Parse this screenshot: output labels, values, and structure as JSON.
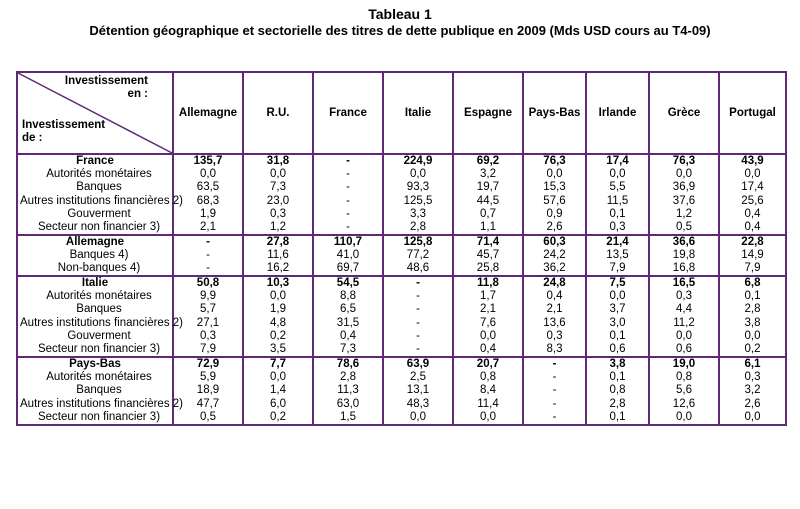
{
  "title": "Tableau 1",
  "subtitle": "Détention géographique et sectorielle des titres de dette publique en 2009 (Mds USD cours au T4-09)",
  "corner": {
    "top_line1": "Investissement",
    "top_line2": "en :",
    "bottom_line1": "Investissement",
    "bottom_line2": "de :"
  },
  "columns": [
    "Allemagne",
    "R.U.",
    "France",
    "Italie",
    "Espagne",
    "Pays-Bas",
    "Irlande",
    "Grèce",
    "Portugal"
  ],
  "groups": [
    {
      "label": "France",
      "values": [
        "135,7",
        "31,8",
        "-",
        "224,9",
        "69,2",
        "76,3",
        "17,4",
        "76,3",
        "43,9"
      ],
      "rows": [
        {
          "label": "Autorités monétaires",
          "values": [
            "0,0",
            "0,0",
            "-",
            "0,0",
            "3,2",
            "0,0",
            "0,0",
            "0,0",
            "0,0"
          ]
        },
        {
          "label": "Banques",
          "values": [
            "63,5",
            "7,3",
            "-",
            "93,3",
            "19,7",
            "15,3",
            "5,5",
            "36,9",
            "17,4"
          ]
        },
        {
          "label": "Autres institutions financières 2)",
          "values": [
            "68,3",
            "23,0",
            "-",
            "125,5",
            "44,5",
            "57,6",
            "11,5",
            "37,6",
            "25,6"
          ]
        },
        {
          "label": "Gouverment",
          "values": [
            "1,9",
            "0,3",
            "-",
            "3,3",
            "0,7",
            "0,9",
            "0,1",
            "1,2",
            "0,4"
          ]
        },
        {
          "label": "Secteur non financier 3)",
          "values": [
            "2,1",
            "1,2",
            "-",
            "2,8",
            "1,1",
            "2,6",
            "0,3",
            "0,5",
            "0,4"
          ]
        }
      ]
    },
    {
      "label": "Allemagne",
      "values": [
        "-",
        "27,8",
        "110,7",
        "125,8",
        "71,4",
        "60,3",
        "21,4",
        "36,6",
        "22,8"
      ],
      "rows": [
        {
          "label": "Banques 4)",
          "values": [
            "-",
            "11,6",
            "41,0",
            "77,2",
            "45,7",
            "24,2",
            "13,5",
            "19,8",
            "14,9"
          ]
        },
        {
          "label": "Non-banques 4)",
          "values": [
            "-",
            "16,2",
            "69,7",
            "48,6",
            "25,8",
            "36,2",
            "7,9",
            "16,8",
            "7,9"
          ]
        }
      ]
    },
    {
      "label": "Italie",
      "values": [
        "50,8",
        "10,3",
        "54,5",
        "-",
        "11,8",
        "24,8",
        "7,5",
        "16,5",
        "6,8"
      ],
      "rows": [
        {
          "label": "Autorités monétaires",
          "values": [
            "9,9",
            "0,0",
            "8,8",
            "-",
            "1,7",
            "0,4",
            "0,0",
            "0,3",
            "0,1"
          ]
        },
        {
          "label": "Banques",
          "values": [
            "5,7",
            "1,9",
            "6,5",
            "-",
            "2,1",
            "2,1",
            "3,7",
            "4,4",
            "2,8"
          ]
        },
        {
          "label": "Autres institutions financières 2)",
          "values": [
            "27,1",
            "4,8",
            "31,5",
            "-",
            "7,6",
            "13,6",
            "3,0",
            "11,2",
            "3,8"
          ]
        },
        {
          "label": "Gouverment",
          "values": [
            "0,3",
            "0,2",
            "0,4",
            "-",
            "0,0",
            "0,3",
            "0,1",
            "0,0",
            "0,0"
          ]
        },
        {
          "label": "Secteur non financier 3)",
          "values": [
            "7,9",
            "3,5",
            "7,3",
            "-",
            "0,4",
            "8,3",
            "0,6",
            "0,6",
            "0,2"
          ]
        }
      ]
    },
    {
      "label": "Pays-Bas",
      "values": [
        "72,9",
        "7,7",
        "78,6",
        "63,9",
        "20,7",
        "-",
        "3,8",
        "19,0",
        "6,1"
      ],
      "rows": [
        {
          "label": "Autorités monétaires",
          "values": [
            "5,9",
            "0,0",
            "2,8",
            "2,5",
            "0,8",
            "-",
            "0,1",
            "0,8",
            "0,3"
          ]
        },
        {
          "label": "Banques",
          "values": [
            "18,9",
            "1,4",
            "11,3",
            "13,1",
            "8,4",
            "-",
            "0,8",
            "5,6",
            "3,2"
          ]
        },
        {
          "label": "Autres institutions financières 2)",
          "values": [
            "47,7",
            "6,0",
            "63,0",
            "48,3",
            "11,4",
            "-",
            "2,8",
            "12,6",
            "2,6"
          ]
        },
        {
          "label": "Secteur non financier 3)",
          "values": [
            "0,5",
            "0,2",
            "1,5",
            "0,0",
            "0,0",
            "-",
            "0,1",
            "0,0",
            "0,0"
          ]
        }
      ]
    }
  ]
}
